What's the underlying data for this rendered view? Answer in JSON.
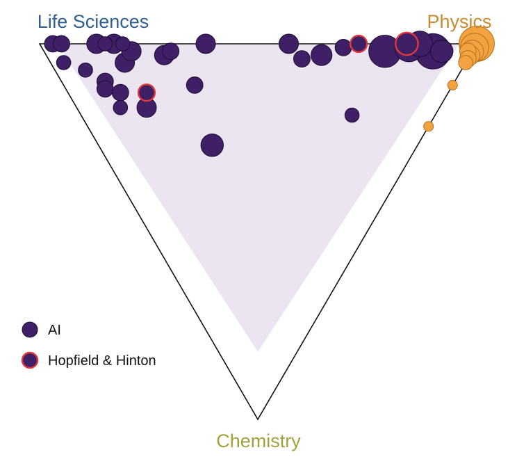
{
  "chart_data": {
    "type": "scatter",
    "coordinate_system": "ternary",
    "corners": [
      {
        "key": "life_sciences",
        "label": "Life Sciences",
        "color": "#2f5f92"
      },
      {
        "key": "physics",
        "label": "Physics",
        "color": "#c98a2f"
      },
      {
        "key": "chemistry",
        "label": "Chemistry",
        "color": "#a4a13d"
      }
    ],
    "colors": {
      "ai_fill": "#3f1f66",
      "ai_stroke": "#1d0d33",
      "hopfield_hinton_stroke": "#e0383a",
      "physics_fill": "#f2a240",
      "physics_stroke": "#b46f1c",
      "region_fill": "#ece4f1"
    },
    "legend": {
      "position": "bottom-left",
      "entries": [
        {
          "label": "AI",
          "marker": "ai"
        },
        {
          "label": "Hopfield & Hinton",
          "marker": "hopfield_hinton"
        }
      ]
    },
    "series": [
      {
        "name": "AI",
        "points": [
          {
            "life_sciences": 0.97,
            "physics": 0.03,
            "chemistry": 0.0,
            "size": 2.2
          },
          {
            "life_sciences": 0.95,
            "physics": 0.05,
            "chemistry": 0.0,
            "size": 2.2
          },
          {
            "life_sciences": 0.87,
            "physics": 0.13,
            "chemistry": 0.0,
            "size": 2.6
          },
          {
            "life_sciences": 0.85,
            "physics": 0.15,
            "chemistry": 0.0,
            "size": 1.9
          },
          {
            "life_sciences": 0.83,
            "physics": 0.17,
            "chemistry": 0.0,
            "size": 2.6
          },
          {
            "life_sciences": 0.81,
            "physics": 0.19,
            "chemistry": 0.0,
            "size": 1.9
          },
          {
            "life_sciences": 0.78,
            "physics": 0.17,
            "chemistry": 0.05,
            "size": 2.6
          },
          {
            "life_sciences": 0.78,
            "physics": 0.2,
            "chemistry": 0.02,
            "size": 2.6
          },
          {
            "life_sciences": 0.7,
            "physics": 0.27,
            "chemistry": 0.03,
            "size": 2.6
          },
          {
            "life_sciences": 0.69,
            "physics": 0.29,
            "chemistry": 0.02,
            "size": 2.2
          },
          {
            "life_sciences": 0.62,
            "physics": 0.38,
            "chemistry": 0.0,
            "size": 2.6
          },
          {
            "life_sciences": 0.43,
            "physics": 0.57,
            "chemistry": 0.0,
            "size": 2.6
          },
          {
            "life_sciences": 0.38,
            "physics": 0.58,
            "chemistry": 0.04,
            "size": 2.2
          },
          {
            "life_sciences": 0.34,
            "physics": 0.63,
            "chemistry": 0.03,
            "size": 2.8
          },
          {
            "life_sciences": 0.3,
            "physics": 0.69,
            "chemistry": 0.01,
            "size": 2.2
          },
          {
            "life_sciences": 0.2,
            "physics": 0.78,
            "chemistry": 0.02,
            "size": 4.3
          },
          {
            "life_sciences": 0.15,
            "physics": 0.84,
            "chemistry": 0.01,
            "size": 3.8
          },
          {
            "life_sciences": 0.13,
            "physics": 0.87,
            "chemistry": 0.0,
            "size": 3.4
          },
          {
            "life_sciences": 0.09,
            "physics": 0.89,
            "chemistry": 0.02,
            "size": 4.7
          },
          {
            "life_sciences": 0.07,
            "physics": 0.91,
            "chemistry": 0.02,
            "size": 3.0
          },
          {
            "life_sciences": 0.92,
            "physics": 0.03,
            "chemistry": 0.05,
            "size": 1.9
          },
          {
            "life_sciences": 0.86,
            "physics": 0.07,
            "chemistry": 0.07,
            "size": 1.9
          },
          {
            "life_sciences": 0.8,
            "physics": 0.1,
            "chemistry": 0.1,
            "size": 2.2
          },
          {
            "life_sciences": 0.79,
            "physics": 0.09,
            "chemistry": 0.12,
            "size": 2.2
          },
          {
            "life_sciences": 0.75,
            "physics": 0.12,
            "chemistry": 0.13,
            "size": 2.2
          },
          {
            "life_sciences": 0.73,
            "physics": 0.1,
            "chemistry": 0.17,
            "size": 1.9
          },
          {
            "life_sciences": 0.67,
            "physics": 0.16,
            "chemistry": 0.17,
            "size": 2.6
          },
          {
            "life_sciences": 0.59,
            "physics": 0.3,
            "chemistry": 0.11,
            "size": 2.2
          },
          {
            "life_sciences": 0.47,
            "physics": 0.26,
            "chemistry": 0.27,
            "size": 3.0
          },
          {
            "life_sciences": 0.19,
            "physics": 0.62,
            "chemistry": 0.19,
            "size": 1.9
          }
        ]
      },
      {
        "name": "Hopfield & Hinton",
        "points": [
          {
            "life_sciences": 0.27,
            "physics": 0.73,
            "chemistry": 0.0,
            "size": 2.2
          },
          {
            "life_sciences": 0.16,
            "physics": 0.84,
            "chemistry": 0.0,
            "size": 3.0
          },
          {
            "life_sciences": 0.69,
            "physics": 0.18,
            "chemistry": 0.13,
            "size": 2.2
          }
        ]
      },
      {
        "name": "Physics",
        "points": [
          {
            "life_sciences": 0.0,
            "physics": 1.0,
            "chemistry": 0.0,
            "size": 4.7
          },
          {
            "life_sciences": 0.0,
            "physics": 0.99,
            "chemistry": 0.01,
            "size": 3.8
          },
          {
            "life_sciences": 0.0,
            "physics": 0.98,
            "chemistry": 0.02,
            "size": 3.0
          },
          {
            "life_sciences": 0.0,
            "physics": 0.97,
            "chemistry": 0.03,
            "size": 2.6
          },
          {
            "life_sciences": 0.01,
            "physics": 0.97,
            "chemistry": 0.02,
            "size": 2.2
          },
          {
            "life_sciences": 0.0,
            "physics": 0.96,
            "chemistry": 0.04,
            "size": 2.2
          },
          {
            "life_sciences": 0.0,
            "physics": 0.95,
            "chemistry": 0.05,
            "size": 1.9
          },
          {
            "life_sciences": 0.0,
            "physics": 0.89,
            "chemistry": 0.11,
            "size": 1.3
          },
          {
            "life_sciences": 0.0,
            "physics": 0.78,
            "chemistry": 0.22,
            "size": 1.3
          }
        ]
      }
    ],
    "shaded_region": {
      "min_fraction_each_corner": 0.04,
      "max_chemistry": 0.82
    }
  }
}
